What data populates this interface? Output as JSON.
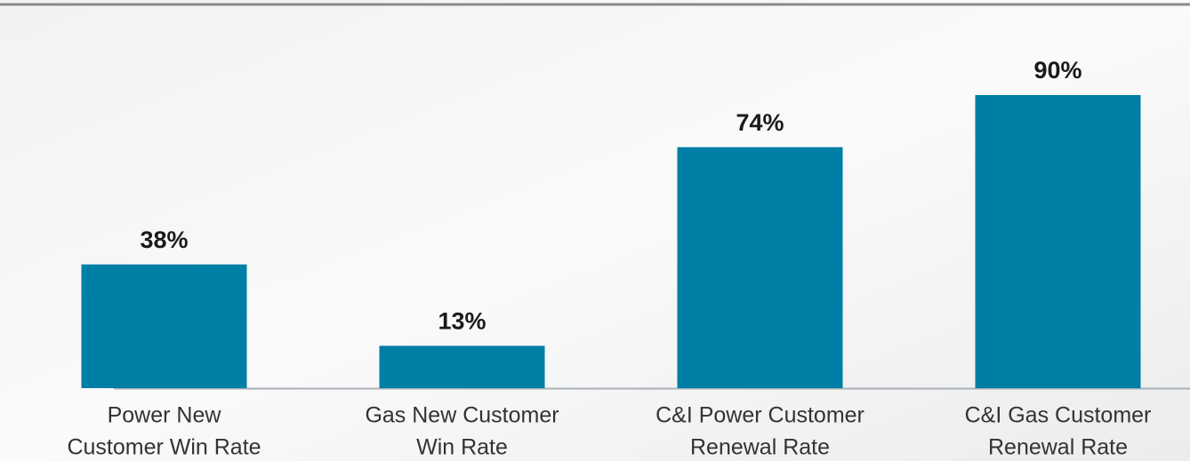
{
  "chart_data": {
    "type": "bar",
    "categories": [
      [
        "Power New",
        "Customer Win Rate"
      ],
      [
        "Gas New Customer",
        "Win Rate"
      ],
      [
        "C&I Power Customer",
        "Renewal Rate"
      ],
      [
        "C&I Gas Customer",
        "Renewal Rate"
      ]
    ],
    "values": [
      38,
      13,
      74,
      90
    ],
    "value_labels": [
      "38%",
      "13%",
      "74%",
      "90%"
    ],
    "color": "#007fa6"
  }
}
